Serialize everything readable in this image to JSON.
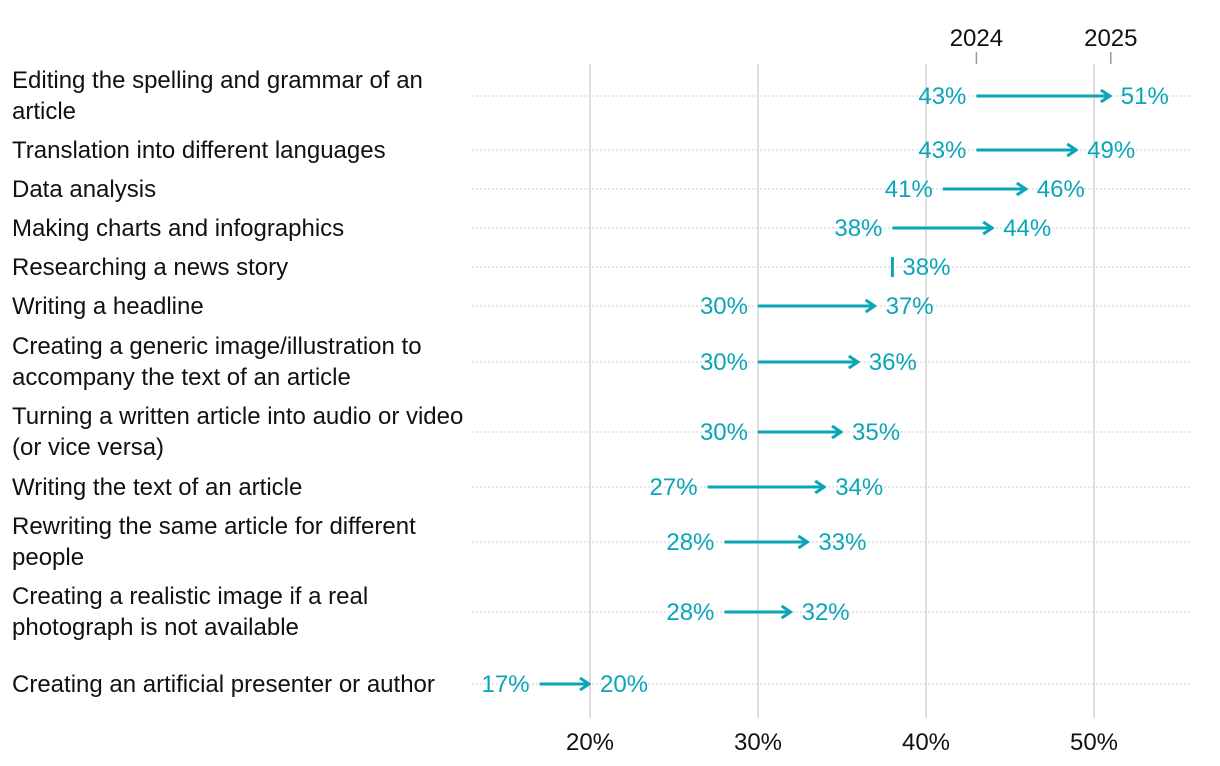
{
  "chart_data": {
    "type": "dumbbell-arrow",
    "title": "",
    "xlabel": "",
    "ylabel": "",
    "xlim": [
      12.9,
      55.6
    ],
    "x_ticks": [
      {
        "value": 20,
        "label": "20%"
      },
      {
        "value": 30,
        "label": "30%"
      },
      {
        "value": 40,
        "label": "40%"
      },
      {
        "value": 50,
        "label": "50%"
      }
    ],
    "series_names": [
      "2024",
      "2025"
    ],
    "series_legend_values": [
      43,
      51
    ],
    "grid": true,
    "legend_position": "top, above first row",
    "color": "#0aa6b8",
    "categories": [
      "Editing the spelling and grammar of an article",
      "Translation into different languages",
      "Data analysis",
      "Making charts and infographics",
      "Researching a news story",
      "Writing a headline",
      "Creating a generic image/illustration to accompany the text of an article",
      "Turning a written article into audio or video (or vice versa)",
      "Writing the text of an article",
      "Rewriting the same article for different people",
      "Creating a realistic image if a real photograph is not available",
      "Creating an artificial presenter or author"
    ],
    "values_2024": [
      43,
      43,
      41,
      38,
      38,
      30,
      30,
      30,
      27,
      28,
      28,
      17
    ],
    "values_2025": [
      51,
      49,
      46,
      44,
      38,
      37,
      36,
      35,
      34,
      33,
      32,
      20
    ],
    "labels_2024": [
      "43%",
      "43%",
      "41%",
      "38%",
      "",
      "30%",
      "30%",
      "30%",
      "27%",
      "28%",
      "28%",
      "17%"
    ],
    "labels_2025": [
      "51%",
      "49%",
      "46%",
      "44%",
      "38%",
      "37%",
      "36%",
      "35%",
      "34%",
      "33%",
      "32%",
      "20%"
    ]
  }
}
